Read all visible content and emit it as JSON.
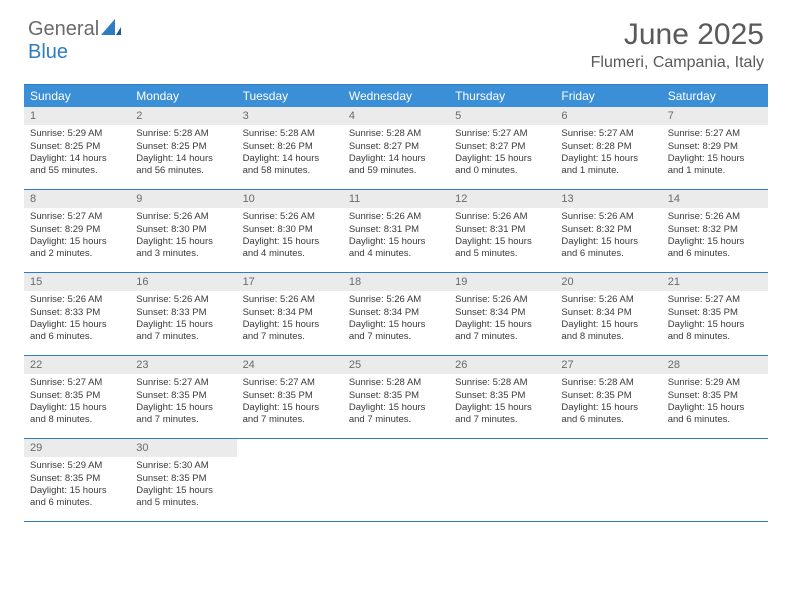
{
  "logo": {
    "text1": "General",
    "text2": "Blue"
  },
  "title": "June 2025",
  "location": "Flumeri, Campania, Italy",
  "colors": {
    "header_bg": "#3b8fd6",
    "border": "#2e7cc2",
    "daynum_bg": "#ebebeb",
    "text_muted": "#6a6a6a",
    "text_title": "#5a5a5a",
    "text_body": "#3a3a3a"
  },
  "dayNames": [
    "Sunday",
    "Monday",
    "Tuesday",
    "Wednesday",
    "Thursday",
    "Friday",
    "Saturday"
  ],
  "weeks": [
    [
      {
        "n": "1",
        "sr": "Sunrise: 5:29 AM",
        "ss": "Sunset: 8:25 PM",
        "dl": "Daylight: 14 hours and 55 minutes."
      },
      {
        "n": "2",
        "sr": "Sunrise: 5:28 AM",
        "ss": "Sunset: 8:25 PM",
        "dl": "Daylight: 14 hours and 56 minutes."
      },
      {
        "n": "3",
        "sr": "Sunrise: 5:28 AM",
        "ss": "Sunset: 8:26 PM",
        "dl": "Daylight: 14 hours and 58 minutes."
      },
      {
        "n": "4",
        "sr": "Sunrise: 5:28 AM",
        "ss": "Sunset: 8:27 PM",
        "dl": "Daylight: 14 hours and 59 minutes."
      },
      {
        "n": "5",
        "sr": "Sunrise: 5:27 AM",
        "ss": "Sunset: 8:27 PM",
        "dl": "Daylight: 15 hours and 0 minutes."
      },
      {
        "n": "6",
        "sr": "Sunrise: 5:27 AM",
        "ss": "Sunset: 8:28 PM",
        "dl": "Daylight: 15 hours and 1 minute."
      },
      {
        "n": "7",
        "sr": "Sunrise: 5:27 AM",
        "ss": "Sunset: 8:29 PM",
        "dl": "Daylight: 15 hours and 1 minute."
      }
    ],
    [
      {
        "n": "8",
        "sr": "Sunrise: 5:27 AM",
        "ss": "Sunset: 8:29 PM",
        "dl": "Daylight: 15 hours and 2 minutes."
      },
      {
        "n": "9",
        "sr": "Sunrise: 5:26 AM",
        "ss": "Sunset: 8:30 PM",
        "dl": "Daylight: 15 hours and 3 minutes."
      },
      {
        "n": "10",
        "sr": "Sunrise: 5:26 AM",
        "ss": "Sunset: 8:30 PM",
        "dl": "Daylight: 15 hours and 4 minutes."
      },
      {
        "n": "11",
        "sr": "Sunrise: 5:26 AM",
        "ss": "Sunset: 8:31 PM",
        "dl": "Daylight: 15 hours and 4 minutes."
      },
      {
        "n": "12",
        "sr": "Sunrise: 5:26 AM",
        "ss": "Sunset: 8:31 PM",
        "dl": "Daylight: 15 hours and 5 minutes."
      },
      {
        "n": "13",
        "sr": "Sunrise: 5:26 AM",
        "ss": "Sunset: 8:32 PM",
        "dl": "Daylight: 15 hours and 6 minutes."
      },
      {
        "n": "14",
        "sr": "Sunrise: 5:26 AM",
        "ss": "Sunset: 8:32 PM",
        "dl": "Daylight: 15 hours and 6 minutes."
      }
    ],
    [
      {
        "n": "15",
        "sr": "Sunrise: 5:26 AM",
        "ss": "Sunset: 8:33 PM",
        "dl": "Daylight: 15 hours and 6 minutes."
      },
      {
        "n": "16",
        "sr": "Sunrise: 5:26 AM",
        "ss": "Sunset: 8:33 PM",
        "dl": "Daylight: 15 hours and 7 minutes."
      },
      {
        "n": "17",
        "sr": "Sunrise: 5:26 AM",
        "ss": "Sunset: 8:34 PM",
        "dl": "Daylight: 15 hours and 7 minutes."
      },
      {
        "n": "18",
        "sr": "Sunrise: 5:26 AM",
        "ss": "Sunset: 8:34 PM",
        "dl": "Daylight: 15 hours and 7 minutes."
      },
      {
        "n": "19",
        "sr": "Sunrise: 5:26 AM",
        "ss": "Sunset: 8:34 PM",
        "dl": "Daylight: 15 hours and 7 minutes."
      },
      {
        "n": "20",
        "sr": "Sunrise: 5:26 AM",
        "ss": "Sunset: 8:34 PM",
        "dl": "Daylight: 15 hours and 8 minutes."
      },
      {
        "n": "21",
        "sr": "Sunrise: 5:27 AM",
        "ss": "Sunset: 8:35 PM",
        "dl": "Daylight: 15 hours and 8 minutes."
      }
    ],
    [
      {
        "n": "22",
        "sr": "Sunrise: 5:27 AM",
        "ss": "Sunset: 8:35 PM",
        "dl": "Daylight: 15 hours and 8 minutes."
      },
      {
        "n": "23",
        "sr": "Sunrise: 5:27 AM",
        "ss": "Sunset: 8:35 PM",
        "dl": "Daylight: 15 hours and 7 minutes."
      },
      {
        "n": "24",
        "sr": "Sunrise: 5:27 AM",
        "ss": "Sunset: 8:35 PM",
        "dl": "Daylight: 15 hours and 7 minutes."
      },
      {
        "n": "25",
        "sr": "Sunrise: 5:28 AM",
        "ss": "Sunset: 8:35 PM",
        "dl": "Daylight: 15 hours and 7 minutes."
      },
      {
        "n": "26",
        "sr": "Sunrise: 5:28 AM",
        "ss": "Sunset: 8:35 PM",
        "dl": "Daylight: 15 hours and 7 minutes."
      },
      {
        "n": "27",
        "sr": "Sunrise: 5:28 AM",
        "ss": "Sunset: 8:35 PM",
        "dl": "Daylight: 15 hours and 6 minutes."
      },
      {
        "n": "28",
        "sr": "Sunrise: 5:29 AM",
        "ss": "Sunset: 8:35 PM",
        "dl": "Daylight: 15 hours and 6 minutes."
      }
    ],
    [
      {
        "n": "29",
        "sr": "Sunrise: 5:29 AM",
        "ss": "Sunset: 8:35 PM",
        "dl": "Daylight: 15 hours and 6 minutes."
      },
      {
        "n": "30",
        "sr": "Sunrise: 5:30 AM",
        "ss": "Sunset: 8:35 PM",
        "dl": "Daylight: 15 hours and 5 minutes."
      },
      null,
      null,
      null,
      null,
      null
    ]
  ]
}
